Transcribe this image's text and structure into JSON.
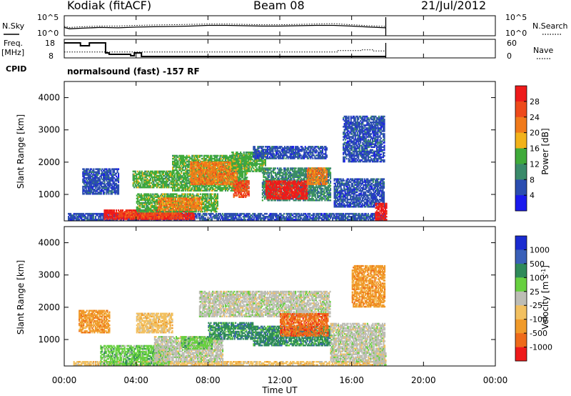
{
  "header": {
    "station": "Kodiak (fitACF)",
    "beam": "Beam 08",
    "date": "21/Jul/2012",
    "cpid_label": "CPID",
    "cpid_text": "normalsound (fast) -157 RF",
    "nsky_label": "N.Sky",
    "nsearch_label": "N.Search",
    "freq_label_1": "Freq.",
    "freq_label_2": "[MHz]",
    "nave_label": "Nave"
  },
  "colors": {
    "power": [
      "#1a1aee",
      "#2b4db0",
      "#3a8a6a",
      "#3faa3a",
      "#f2b21a",
      "#f07a1a",
      "#ee4a1a",
      "#ee1a1a"
    ],
    "velocity": [
      "#1a2bd0",
      "#3a60b8",
      "#2f8a5a",
      "#68d040",
      "#bdbdb5",
      "#f2c060",
      "#f09a2a",
      "#ee6a1a",
      "#ee1a1a"
    ]
  },
  "chart_data": [
    {
      "type": "line",
      "name": "noise",
      "x": [
        0,
        0.3,
        1,
        2,
        3,
        4,
        5,
        6,
        7,
        8,
        9,
        10,
        11,
        12,
        13,
        14,
        15,
        16,
        17,
        17.9
      ],
      "series": [
        {
          "name": "N.Sky",
          "values": [
            2.0,
            1.6,
            1.8,
            2.0,
            1.9,
            2.1,
            2.2,
            2.3,
            2.4,
            2.6,
            2.6,
            2.5,
            2.4,
            2.4,
            2.5,
            2.6,
            2.6,
            2.4,
            2.1,
            1.9
          ]
        },
        {
          "name": "N.Search",
          "values": [
            2.3,
            2.0,
            2.2,
            2.4,
            2.4,
            2.6,
            2.7,
            2.8,
            2.9,
            3.0,
            3.0,
            2.9,
            2.8,
            2.8,
            2.9,
            3.0,
            3.1,
            2.8,
            2.5,
            2.3
          ]
        }
      ],
      "y_left_ticks": [
        "10^5",
        "10^0"
      ],
      "y_right_ticks": [
        "10^5",
        "10^0"
      ]
    },
    {
      "type": "line",
      "name": "frequency-nave",
      "x": [
        0,
        0.5,
        0.9,
        1.2,
        1.4,
        2.3,
        2.5,
        3.7,
        3.9,
        4.0,
        4.3,
        15.0,
        15.2,
        16.2,
        16.5,
        17.2,
        17.9
      ],
      "series": [
        {
          "name": "Freq.",
          "values": [
            18,
            18,
            16,
            16,
            18,
            11,
            10,
            9,
            11,
            11,
            8.5,
            8.5,
            8.5,
            8.5,
            8.5,
            8.5,
            8.5
          ]
        },
        {
          "name": "Nave",
          "values": [
            22,
            22,
            22,
            22,
            22,
            22,
            22,
            22,
            22,
            22,
            22,
            22,
            28,
            28,
            31,
            26,
            22
          ]
        }
      ],
      "y_left_ticks": [
        "18",
        "8"
      ],
      "y_right_ticks": [
        "60",
        "0"
      ]
    },
    {
      "type": "heatmap",
      "name": "power",
      "xlabel": "",
      "ylabel": "Slant Range [km]",
      "x_range": [
        0,
        24
      ],
      "ylim": [
        180,
        4500
      ],
      "y_ticks": [
        "1000",
        "2000",
        "3000",
        "4000"
      ],
      "colorbar_label": "Power [dB]",
      "colorbar_ticks": [
        "4",
        "8",
        "12",
        "16",
        "20",
        "24",
        "28"
      ],
      "regions": [
        {
          "t0": 0.2,
          "t1": 17.9,
          "r0": 200,
          "r1": 420,
          "level": 1
        },
        {
          "t0": 2.2,
          "t1": 7.2,
          "r0": 220,
          "r1": 520,
          "level": 7
        },
        {
          "t0": 3.0,
          "t1": 6.5,
          "r0": 250,
          "r1": 450,
          "level": 6
        },
        {
          "t0": 4.0,
          "t1": 8.5,
          "r0": 450,
          "r1": 1000,
          "level": 3
        },
        {
          "t0": 5.2,
          "t1": 7.6,
          "r0": 500,
          "r1": 900,
          "level": 5
        },
        {
          "t0": 1.0,
          "t1": 3.0,
          "r0": 1000,
          "r1": 1800,
          "level": 1
        },
        {
          "t0": 3.8,
          "t1": 6.0,
          "r0": 1200,
          "r1": 1700,
          "level": 3
        },
        {
          "t0": 6.0,
          "t1": 10.2,
          "r0": 1100,
          "r1": 2200,
          "level": 3
        },
        {
          "t0": 7.0,
          "t1": 9.6,
          "r0": 1300,
          "r1": 2000,
          "level": 5
        },
        {
          "t0": 9.3,
          "t1": 11.2,
          "r0": 1700,
          "r1": 2300,
          "level": 3
        },
        {
          "t0": 10.5,
          "t1": 14.6,
          "r0": 2100,
          "r1": 2500,
          "level": 1
        },
        {
          "t0": 9.4,
          "t1": 10.3,
          "r0": 900,
          "r1": 1400,
          "level": 6
        },
        {
          "t0": 11.0,
          "t1": 14.8,
          "r0": 800,
          "r1": 1800,
          "level": 2
        },
        {
          "t0": 11.2,
          "t1": 13.5,
          "r0": 850,
          "r1": 1400,
          "level": 7
        },
        {
          "t0": 13.5,
          "t1": 14.6,
          "r0": 1300,
          "r1": 1800,
          "level": 5
        },
        {
          "t0": 15.0,
          "t1": 17.8,
          "r0": 600,
          "r1": 1500,
          "level": 1
        },
        {
          "t0": 15.5,
          "t1": 17.8,
          "r0": 2000,
          "r1": 3400,
          "level": 1
        },
        {
          "t0": 17.3,
          "t1": 17.9,
          "r0": 200,
          "r1": 700,
          "level": 7
        }
      ]
    },
    {
      "type": "heatmap",
      "name": "velocity",
      "xlabel": "Time UT",
      "ylabel": "Slant Range [km]",
      "x_range": [
        0,
        24
      ],
      "x_ticks": [
        "00:00",
        "04:00",
        "08:00",
        "12:00",
        "16:00",
        "20:00",
        "00:00"
      ],
      "ylim": [
        180,
        4500
      ],
      "y_ticks": [
        "1000",
        "2000",
        "3000",
        "4000"
      ],
      "colorbar_label": "Velocity [m s^-1]",
      "colorbar_ticks": [
        "1000",
        "500",
        "100",
        "25",
        "-25",
        "-100",
        "-500",
        "-1000"
      ],
      "regions": [
        {
          "t0": 0.5,
          "t1": 17.9,
          "r0": 200,
          "r1": 320,
          "level": 5
        },
        {
          "t0": 2.0,
          "t1": 5.8,
          "r0": 200,
          "r1": 800,
          "level": 3
        },
        {
          "t0": 5.0,
          "t1": 8.8,
          "r0": 300,
          "r1": 1100,
          "level": 4
        },
        {
          "t0": 6.5,
          "t1": 8.2,
          "r0": 700,
          "r1": 1100,
          "level": 3
        },
        {
          "t0": 0.8,
          "t1": 2.5,
          "r0": 1200,
          "r1": 1900,
          "level": 6
        },
        {
          "t0": 4.0,
          "t1": 6.0,
          "r0": 1200,
          "r1": 1800,
          "level": 5
        },
        {
          "t0": 7.5,
          "t1": 14.8,
          "r0": 1700,
          "r1": 2500,
          "level": 4
        },
        {
          "t0": 8.0,
          "t1": 10.5,
          "r0": 1000,
          "r1": 1500,
          "level": 2
        },
        {
          "t0": 10.5,
          "t1": 14.8,
          "r0": 800,
          "r1": 1400,
          "level": 2
        },
        {
          "t0": 12.0,
          "t1": 14.7,
          "r0": 1100,
          "r1": 1800,
          "level": 7
        },
        {
          "t0": 14.8,
          "t1": 17.8,
          "r0": 300,
          "r1": 1500,
          "level": 4
        },
        {
          "t0": 16.0,
          "t1": 17.8,
          "r0": 2000,
          "r1": 3300,
          "level": 6
        },
        {
          "t0": 17.2,
          "t1": 17.9,
          "r0": 200,
          "r1": 700,
          "level": 4
        }
      ]
    }
  ]
}
